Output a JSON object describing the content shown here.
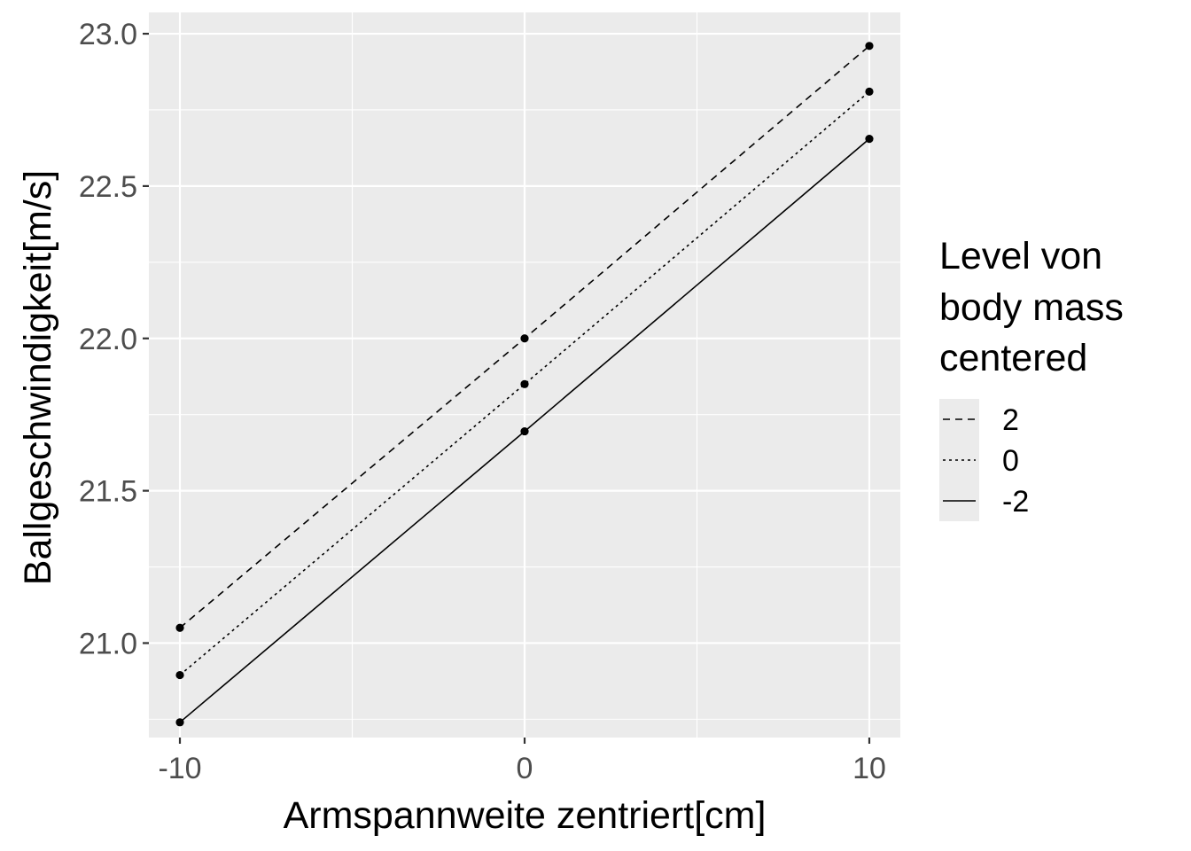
{
  "chart_data": {
    "type": "line",
    "xlabel": "Armspannweite zentriert[cm]",
    "ylabel": "Ballgeschwindigkeit[m/s]",
    "x": [
      -10,
      0,
      10
    ],
    "x_ticks": [
      "-10",
      "0",
      "10"
    ],
    "y_ticks": [
      "21.0",
      "21.5",
      "22.0",
      "22.5",
      "23.0"
    ],
    "xlim": [
      -10.9,
      10.9
    ],
    "ylim": [
      20.69,
      23.07
    ],
    "grid": true,
    "legend": {
      "title_lines": [
        "Level von",
        "body mass",
        "centered"
      ],
      "placement": "right"
    },
    "series": [
      {
        "name": "2",
        "linetype": "dashed",
        "values": [
          21.05,
          22.0,
          22.96
        ]
      },
      {
        "name": "0",
        "linetype": "dotted",
        "values": [
          20.895,
          21.85,
          22.81
        ]
      },
      {
        "name": "-2",
        "linetype": "solid",
        "values": [
          20.74,
          21.695,
          22.655
        ]
      }
    ],
    "colors": {
      "panel": "#ebebeb",
      "grid": "#ffffff",
      "line": "#000000",
      "tick_text": "#4d4d4d"
    }
  }
}
